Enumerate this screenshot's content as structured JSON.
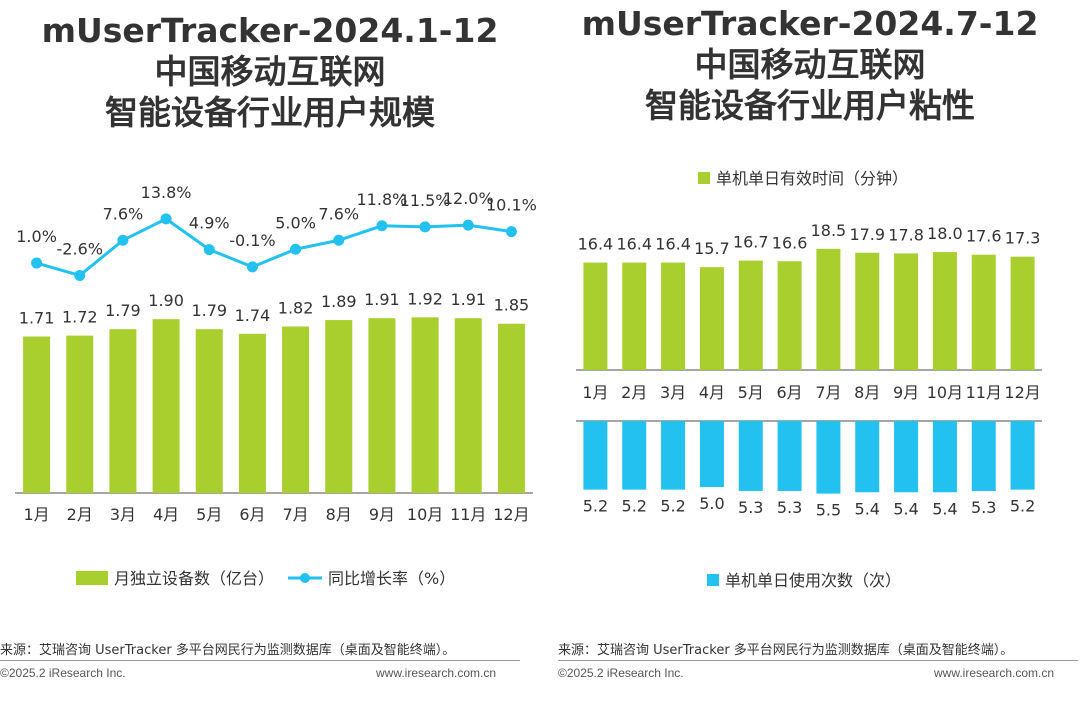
{
  "colors": {
    "green": "#a8cf2e",
    "blue": "#22c1ef",
    "axis": "#888888",
    "text": "#333333"
  },
  "left": {
    "title": [
      "mUserTracker-2024.1-12",
      "中国移动互联网",
      "智能设备行业用户规模"
    ],
    "legend_bar": "月独立设备数（亿台）",
    "legend_line": "同比增长率（%）",
    "source": "来源：艾瑞咨询 UserTracker 多平台网民行为监测数据库（桌面及智能终端）。",
    "copyright": "©2025.2 iResearch Inc.",
    "website": "www.iresearch.com.cn"
  },
  "right": {
    "title": [
      "mUserTracker-2024.7-12",
      "中国移动互联网",
      "智能设备行业用户粘性"
    ],
    "legend_top": "单机单日有效时间（分钟）",
    "legend_bottom": "单机单日使用次数（次）",
    "source": "来源：艾瑞咨询 UserTracker 多平台网民行为监测数据库（桌面及智能终端）。",
    "copyright": "©2025.2 iResearch Inc.",
    "website": "www.iresearch.com.cn"
  },
  "chart_data": [
    {
      "type": "bar",
      "categories": [
        "1月",
        "2月",
        "3月",
        "4月",
        "5月",
        "6月",
        "7月",
        "8月",
        "9月",
        "10月",
        "11月",
        "12月"
      ],
      "series": [
        {
          "name": "月独立设备数（亿台）",
          "type": "bar",
          "values": [
            1.71,
            1.72,
            1.79,
            1.9,
            1.79,
            1.74,
            1.82,
            1.89,
            1.91,
            1.92,
            1.91,
            1.85
          ],
          "labels": [
            "1.71",
            "1.72",
            "1.79",
            "1.90",
            "1.79",
            "1.74",
            "1.82",
            "1.89",
            "1.91",
            "1.92",
            "1.91",
            "1.85"
          ]
        },
        {
          "name": "同比增长率（%）",
          "type": "line",
          "values": [
            1.0,
            -2.6,
            7.6,
            13.8,
            4.9,
            -0.1,
            5.0,
            7.6,
            11.8,
            11.5,
            12.0,
            10.1
          ],
          "labels": [
            "1.0%",
            "-2.6%",
            "7.6%",
            "13.8%",
            "4.9%",
            "-0.1%",
            "5.0%",
            "7.6%",
            "11.8%",
            "11.5%",
            "12.0%",
            "10.1%"
          ]
        }
      ],
      "legend": "bottom"
    },
    {
      "type": "bar",
      "categories": [
        "1月",
        "2月",
        "3月",
        "4月",
        "5月",
        "6月",
        "7月",
        "8月",
        "9月",
        "10月",
        "11月",
        "12月"
      ],
      "series": [
        {
          "name": "单机单日有效时间（分钟）",
          "values": [
            16.4,
            16.4,
            16.4,
            15.7,
            16.7,
            16.6,
            18.5,
            17.9,
            17.8,
            18.0,
            17.6,
            17.3
          ],
          "labels": [
            "16.4",
            "16.4",
            "16.4",
            "15.7",
            "16.7",
            "16.6",
            "18.5",
            "17.9",
            "17.8",
            "18.0",
            "17.6",
            "17.3"
          ]
        },
        {
          "name": "单机单日使用次数（次）",
          "values": [
            5.2,
            5.2,
            5.2,
            5.0,
            5.3,
            5.3,
            5.5,
            5.4,
            5.4,
            5.4,
            5.3,
            5.2
          ],
          "labels": [
            "5.2",
            "5.2",
            "5.2",
            "5.0",
            "5.3",
            "5.3",
            "5.5",
            "5.4",
            "5.4",
            "5.4",
            "5.3",
            "5.2"
          ]
        }
      ],
      "legend": "top and bottom"
    }
  ]
}
